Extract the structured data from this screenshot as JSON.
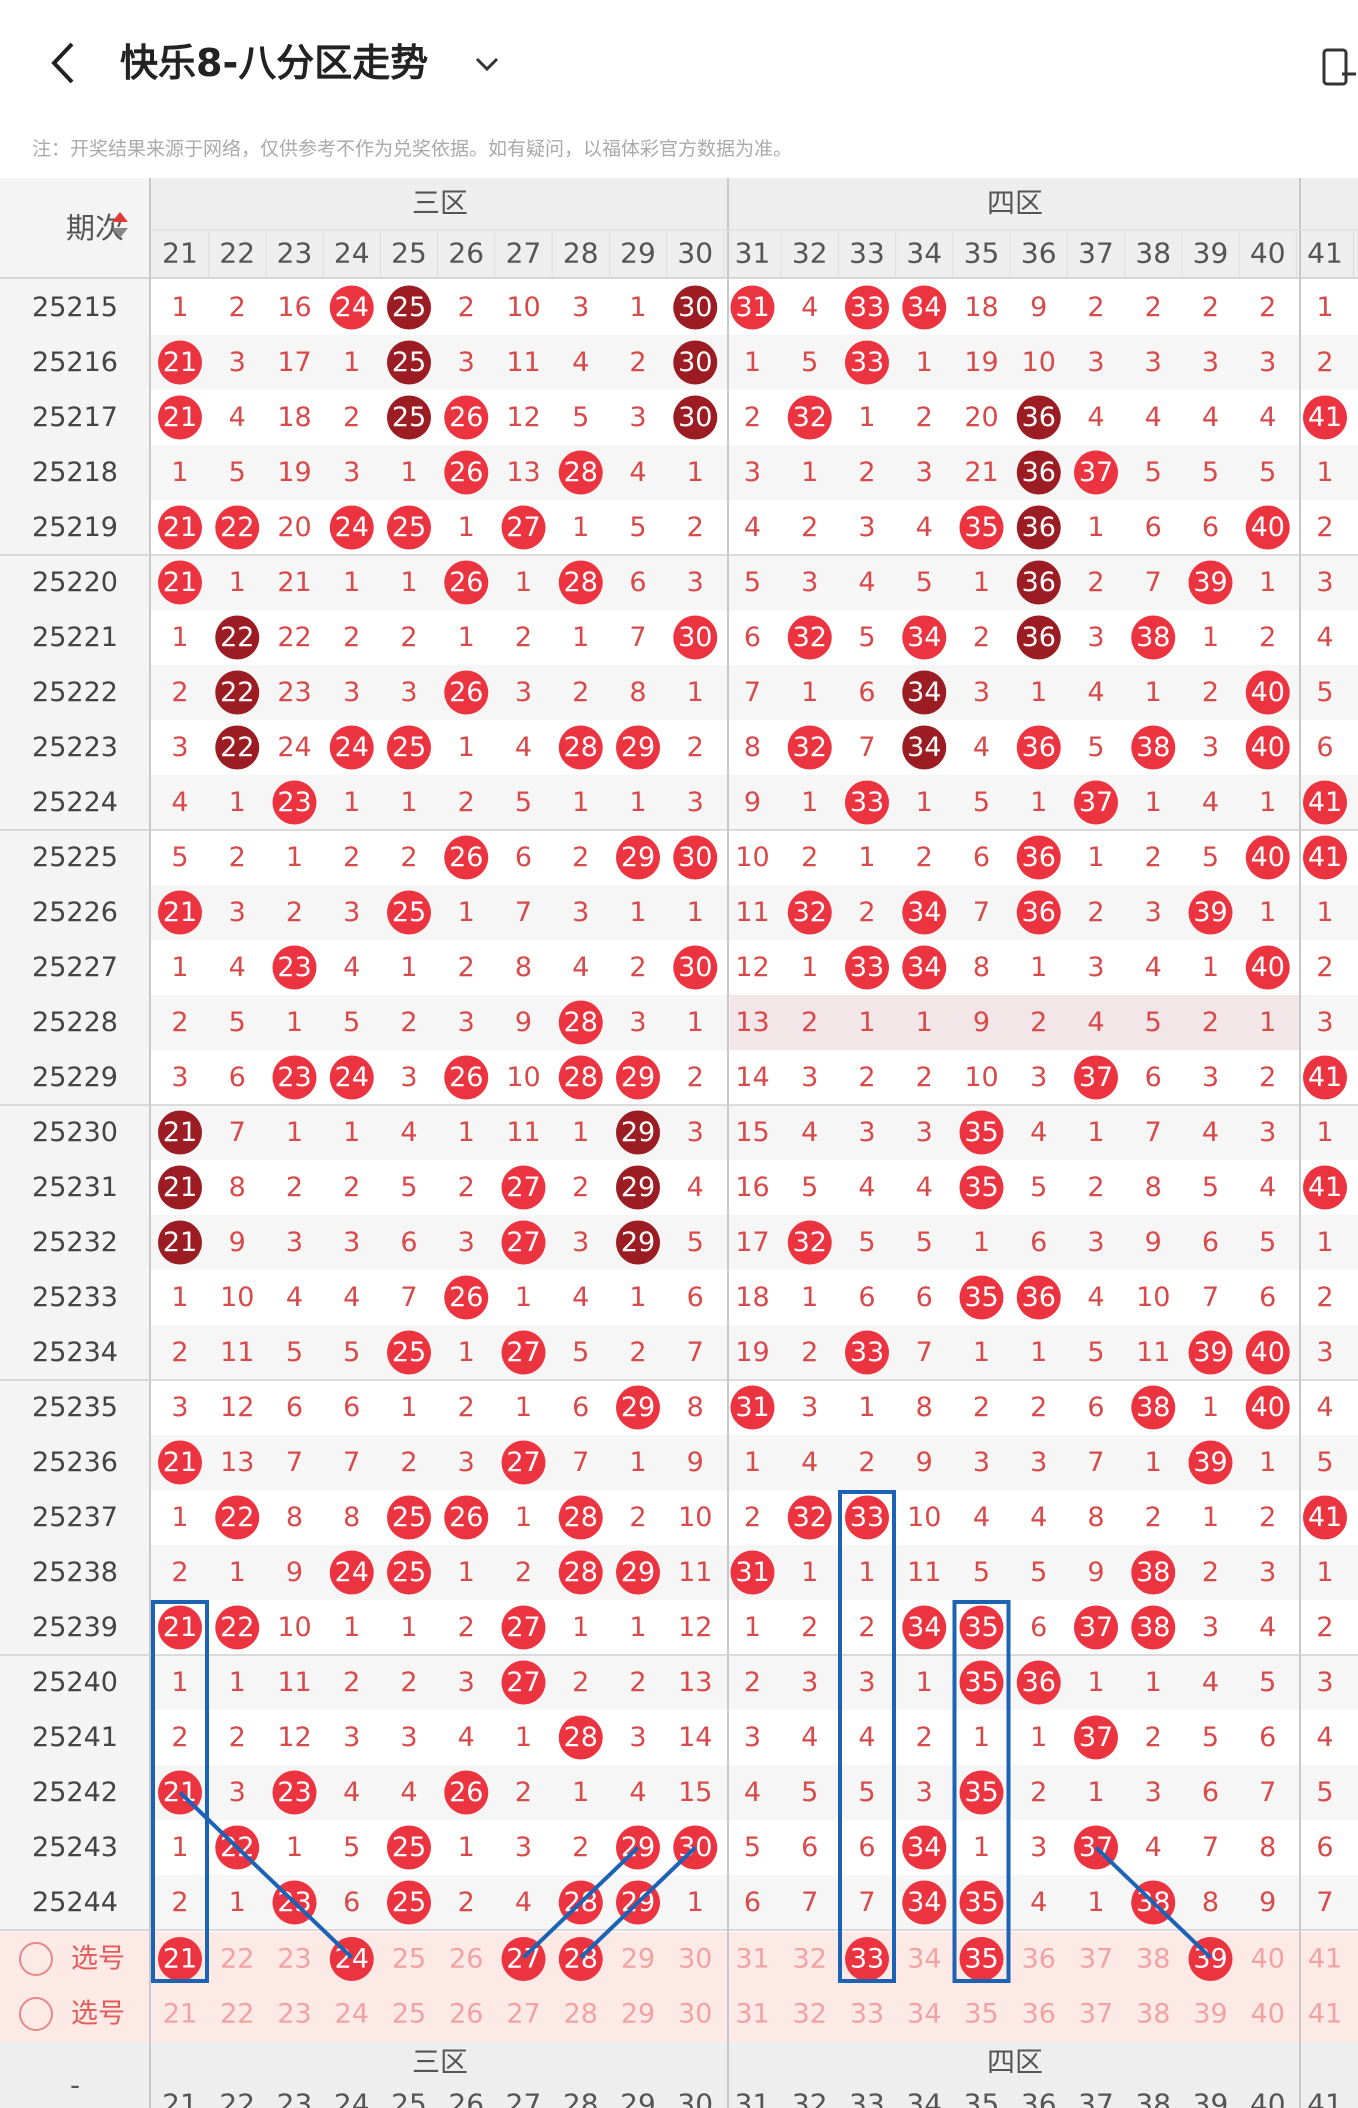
{
  "header": {
    "title": "快乐8-八分区走势",
    "note": "注：开奖结果来源于网络，仅供参考不作为兑奖依据。如有疑问，以福体彩官方数据为准。"
  },
  "table": {
    "period_header": "期次",
    "zones": [
      "三区",
      "四区"
    ],
    "columns": [
      21,
      22,
      23,
      24,
      25,
      26,
      27,
      28,
      29,
      30,
      31,
      32,
      33,
      34,
      35,
      36,
      37,
      38,
      39,
      40,
      41
    ],
    "select_label": "选号",
    "bottom_placeholder": "-",
    "rows": [
      {
        "period": "25215",
        "cells": [
          1,
          2,
          16,
          "24",
          "25",
          2,
          10,
          3,
          1,
          "30",
          "31",
          4,
          "33",
          "34",
          18,
          9,
          2,
          2,
          2,
          2,
          1
        ]
      },
      {
        "period": "25216",
        "cells": [
          "21",
          3,
          17,
          1,
          "25",
          3,
          11,
          4,
          2,
          "30",
          1,
          5,
          "33",
          1,
          19,
          10,
          3,
          3,
          3,
          3,
          2
        ]
      },
      {
        "period": "25217",
        "cells": [
          "21",
          4,
          18,
          2,
          "25",
          "26",
          12,
          5,
          3,
          "30",
          2,
          "32",
          1,
          2,
          20,
          "36",
          4,
          4,
          4,
          4,
          "41"
        ]
      },
      {
        "period": "25218",
        "cells": [
          1,
          5,
          19,
          3,
          1,
          "26",
          13,
          "28",
          4,
          1,
          3,
          1,
          2,
          3,
          21,
          "36",
          "37",
          5,
          5,
          5,
          1
        ]
      },
      {
        "period": "25219",
        "cells": [
          "21",
          "22",
          20,
          "24",
          "25",
          1,
          "27",
          1,
          5,
          2,
          4,
          2,
          3,
          4,
          "35",
          "36",
          1,
          6,
          6,
          "40",
          2
        ]
      },
      {
        "period": "25220",
        "cells": [
          "21",
          1,
          21,
          1,
          1,
          "26",
          1,
          "28",
          6,
          3,
          5,
          3,
          4,
          5,
          1,
          "36",
          2,
          7,
          "39",
          1,
          3
        ]
      },
      {
        "period": "25221",
        "cells": [
          1,
          "22",
          22,
          2,
          2,
          1,
          2,
          1,
          7,
          "30",
          6,
          "32",
          5,
          "34",
          2,
          "36",
          3,
          "38",
          1,
          2,
          4
        ]
      },
      {
        "period": "25222",
        "cells": [
          2,
          "22",
          23,
          3,
          3,
          "26",
          3,
          2,
          8,
          1,
          7,
          1,
          6,
          "34",
          3,
          1,
          4,
          1,
          2,
          "40",
          5
        ]
      },
      {
        "period": "25223",
        "cells": [
          3,
          "22",
          24,
          "24",
          "25",
          1,
          4,
          "28",
          "29",
          2,
          8,
          "32",
          7,
          "34",
          4,
          "36",
          5,
          "38",
          3,
          "40",
          6
        ]
      },
      {
        "period": "25224",
        "cells": [
          4,
          1,
          "23",
          1,
          1,
          2,
          5,
          1,
          1,
          3,
          9,
          1,
          "33",
          1,
          5,
          1,
          "37",
          1,
          4,
          1,
          "41"
        ]
      },
      {
        "period": "25225",
        "cells": [
          5,
          2,
          1,
          2,
          2,
          "26",
          6,
          2,
          "29",
          "30",
          10,
          2,
          1,
          2,
          6,
          "36",
          1,
          2,
          5,
          "40",
          "41"
        ]
      },
      {
        "period": "25226",
        "cells": [
          "21",
          3,
          2,
          3,
          "25",
          1,
          7,
          3,
          1,
          1,
          11,
          "32",
          2,
          "34",
          7,
          "36",
          2,
          3,
          "39",
          1,
          1
        ]
      },
      {
        "period": "25227",
        "cells": [
          1,
          4,
          "23",
          4,
          1,
          2,
          8,
          4,
          2,
          "30",
          12,
          1,
          "33",
          "34",
          8,
          1,
          3,
          4,
          1,
          "40",
          2
        ]
      },
      {
        "period": "25228",
        "cells": [
          2,
          5,
          1,
          5,
          2,
          3,
          9,
          "28",
          3,
          1,
          13,
          2,
          1,
          1,
          9,
          2,
          4,
          5,
          2,
          1,
          3
        ]
      },
      {
        "period": "25229",
        "cells": [
          3,
          6,
          "23",
          "24",
          3,
          "26",
          10,
          "28",
          "29",
          2,
          14,
          3,
          2,
          2,
          10,
          3,
          "37",
          6,
          3,
          2,
          "41"
        ]
      },
      {
        "period": "25230",
        "cells": [
          "21",
          7,
          1,
          1,
          4,
          1,
          11,
          1,
          "29",
          3,
          15,
          4,
          3,
          3,
          "35",
          4,
          1,
          7,
          4,
          3,
          1
        ]
      },
      {
        "period": "25231",
        "cells": [
          "21",
          8,
          2,
          2,
          5,
          2,
          "27",
          2,
          "29",
          4,
          16,
          5,
          4,
          4,
          "35",
          5,
          2,
          8,
          5,
          4,
          "41"
        ]
      },
      {
        "period": "25232",
        "cells": [
          "21",
          9,
          3,
          3,
          6,
          3,
          "27",
          3,
          "29",
          5,
          17,
          "32",
          5,
          5,
          1,
          6,
          3,
          9,
          6,
          5,
          1
        ]
      },
      {
        "period": "25233",
        "cells": [
          1,
          10,
          4,
          4,
          7,
          "26",
          1,
          4,
          1,
          6,
          18,
          1,
          6,
          6,
          "35",
          "36",
          4,
          10,
          7,
          6,
          2
        ]
      },
      {
        "period": "25234",
        "cells": [
          2,
          11,
          5,
          5,
          "25",
          1,
          "27",
          5,
          2,
          7,
          19,
          2,
          "33",
          7,
          1,
          1,
          5,
          11,
          "39",
          "40",
          3
        ]
      },
      {
        "period": "25235",
        "cells": [
          3,
          12,
          6,
          6,
          1,
          2,
          1,
          6,
          "29",
          8,
          "31",
          3,
          1,
          8,
          2,
          2,
          6,
          "38",
          1,
          "40",
          4
        ]
      },
      {
        "period": "25236",
        "cells": [
          "21",
          13,
          7,
          7,
          2,
          3,
          "27",
          7,
          1,
          9,
          1,
          4,
          2,
          9,
          3,
          3,
          7,
          1,
          "39",
          1,
          5
        ]
      },
      {
        "period": "25237",
        "cells": [
          1,
          "22",
          8,
          8,
          "25",
          "26",
          1,
          "28",
          2,
          10,
          2,
          "32",
          "33",
          10,
          4,
          4,
          8,
          2,
          1,
          2,
          "41"
        ]
      },
      {
        "period": "25238",
        "cells": [
          2,
          1,
          9,
          "24",
          "25",
          1,
          2,
          "28",
          "29",
          11,
          "31",
          1,
          1,
          11,
          5,
          5,
          9,
          "38",
          2,
          3,
          1
        ]
      },
      {
        "period": "25239",
        "cells": [
          "21",
          "22",
          10,
          1,
          1,
          2,
          "27",
          1,
          1,
          12,
          1,
          2,
          2,
          "34",
          "35",
          6,
          "37",
          "38",
          3,
          4,
          2
        ]
      },
      {
        "period": "25240",
        "cells": [
          1,
          1,
          11,
          2,
          2,
          3,
          "27",
          2,
          2,
          13,
          2,
          3,
          3,
          1,
          "35",
          "36",
          1,
          1,
          4,
          5,
          3
        ]
      },
      {
        "period": "25241",
        "cells": [
          2,
          2,
          12,
          3,
          3,
          4,
          1,
          "28",
          3,
          14,
          3,
          4,
          4,
          2,
          1,
          1,
          "37",
          2,
          5,
          6,
          4
        ]
      },
      {
        "period": "25242",
        "cells": [
          "21",
          3,
          "23",
          4,
          4,
          "26",
          2,
          1,
          4,
          15,
          4,
          5,
          5,
          3,
          "35",
          2,
          1,
          3,
          6,
          7,
          5
        ]
      },
      {
        "period": "25243",
        "cells": [
          1,
          "22",
          1,
          5,
          "25",
          1,
          3,
          2,
          "29",
          "30",
          5,
          6,
          6,
          "34",
          1,
          3,
          "37",
          4,
          7,
          8,
          6
        ]
      },
      {
        "period": "25244",
        "cells": [
          2,
          1,
          "23",
          6,
          "25",
          2,
          4,
          "28",
          "29",
          1,
          6,
          7,
          7,
          "34",
          "35",
          4,
          1,
          "38",
          8,
          9,
          7
        ]
      }
    ],
    "selected_numbers": [
      21,
      24,
      27,
      28,
      33,
      35,
      39
    ]
  }
}
